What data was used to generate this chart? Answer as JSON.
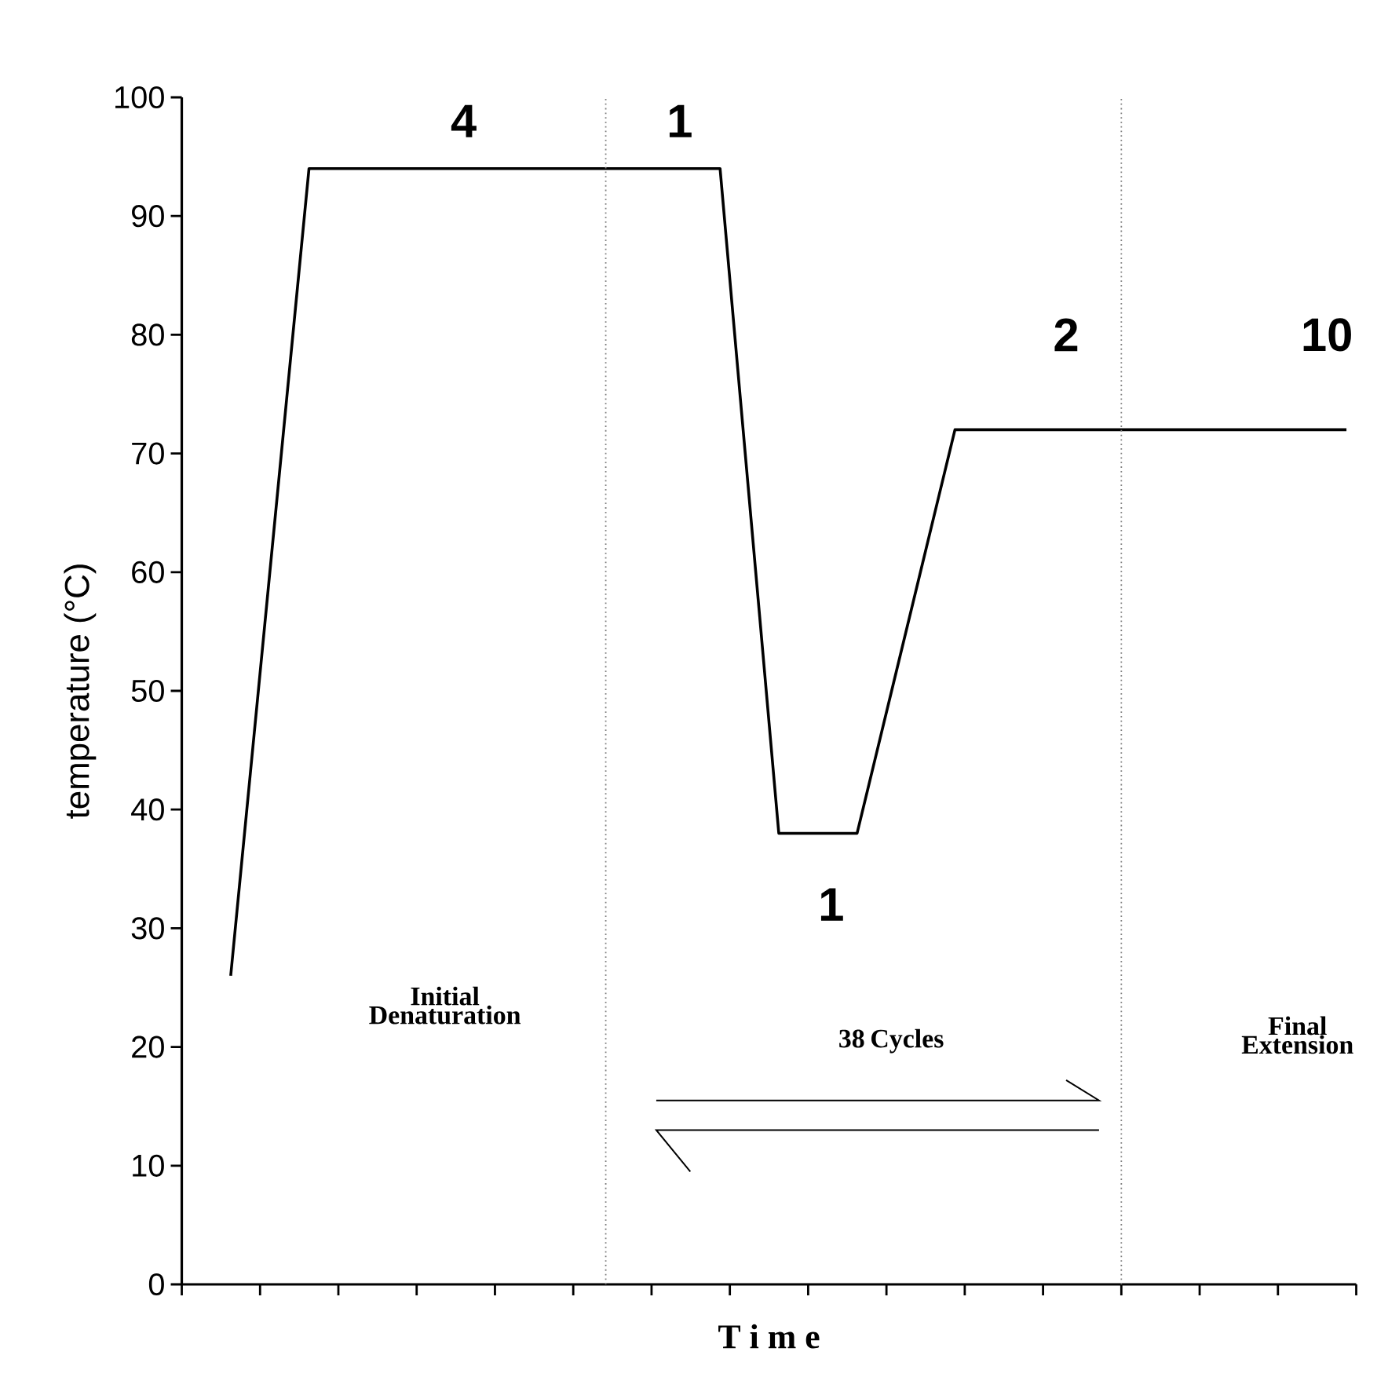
{
  "chart_data": {
    "type": "line",
    "xlabel": "T i m e",
    "ylabel": "temperature (°C)",
    "categories": [
      null,
      null,
      null,
      null,
      null,
      null,
      null,
      null,
      null,
      null,
      null,
      null,
      null,
      null,
      null,
      null,
      null,
      null,
      null,
      null,
      null,
      null,
      null,
      null,
      null,
      null,
      null,
      null,
      null,
      null,
      null,
      null,
      null,
      null,
      null,
      null,
      null,
      null,
      null,
      null,
      null,
      null,
      null,
      null,
      null,
      null,
      null,
      null,
      null,
      null,
      null,
      null,
      null,
      null,
      null,
      null,
      null,
      null,
      null,
      null
    ],
    "series": [
      {
        "color": "#000000",
        "values": [
          null,
          null,
          26,
          43,
          60,
          77,
          94,
          94,
          94,
          94,
          94,
          94,
          94,
          94,
          94,
          94,
          94,
          94,
          94,
          94,
          94,
          94,
          94,
          94,
          94,
          94,
          94,
          94,
          75.3,
          56.7,
          38,
          38,
          38,
          38,
          38,
          44.8,
          51.6,
          58.4,
          65.2,
          72,
          72,
          72,
          72,
          72,
          72,
          72,
          72,
          72,
          72,
          72,
          72,
          72,
          72,
          72,
          72,
          72,
          72,
          72,
          72,
          72
        ]
      }
    ],
    "ylim": [
      0,
      100
    ],
    "yticks": [
      0,
      10,
      20,
      30,
      40,
      50,
      60,
      70,
      80,
      90,
      100
    ],
    "tick_labels": "y",
    "grid": false,
    "marker": "none",
    "line_style": "solid",
    "annotations": [
      "4",
      "1",
      "1",
      "2",
      "10",
      "Initial Denaturation",
      "38 Cycles",
      "Final Extension"
    ]
  }
}
